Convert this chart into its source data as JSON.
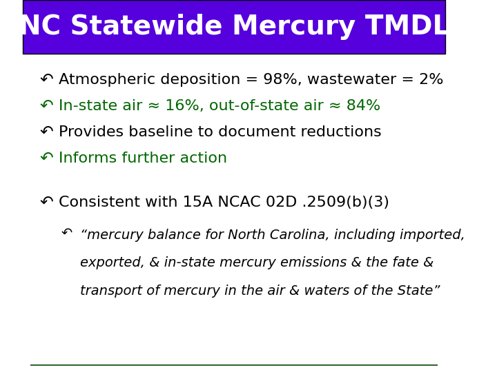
{
  "title": "NC Statewide Mercury TMDL",
  "title_bg_color": "#5500dd",
  "title_text_color": "#ffffff",
  "background_color": "#ffffff",
  "bullet_color": "#006600",
  "bullet_black_color": "#000000",
  "bullets_black": [
    "Atmospheric deposition = 98%, wastewater = 2%",
    "Provides baseline to document reductions"
  ],
  "bullets_green": [
    "In-state air ≈ 16%, out-of-state air ≈ 84%",
    "Informs further action"
  ],
  "consistent_line": "Consistent with 15A NCAC 02D .2509(b)(3)",
  "quote_lines": [
    "“mercury balance for North Carolina, including imported,",
    "exported, & in-state mercury emissions & the fate &",
    "transport of mercury in the air & waters of the State”"
  ],
  "bottom_line_color": "#336633",
  "figsize": [
    7.2,
    5.4
  ],
  "dpi": 100
}
